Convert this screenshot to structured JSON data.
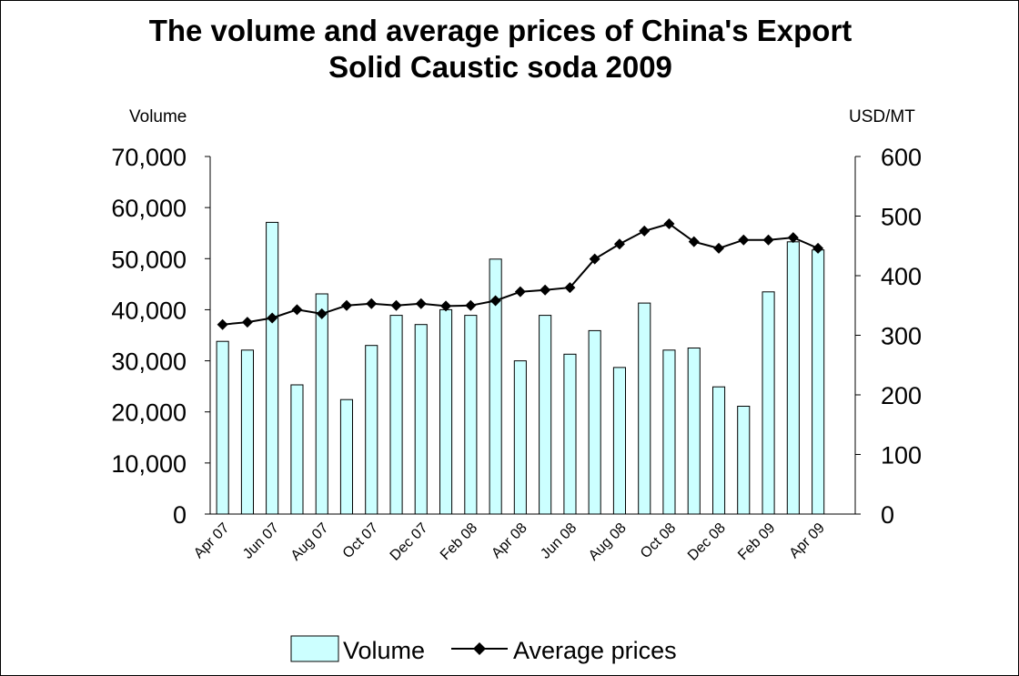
{
  "chart_data": {
    "type": "bar",
    "title_line1": "The volume and average prices of China's Export",
    "title_line2": "Solid Caustic soda 2009",
    "left_axis_label": "Volume",
    "right_axis_label": "USD/MT",
    "y_left_range": [
      0,
      70000
    ],
    "y_right_range": [
      0,
      600
    ],
    "y_left_ticks": [
      "0",
      "10,000",
      "20,000",
      "30,000",
      "40,000",
      "50,000",
      "60,000",
      "70,000"
    ],
    "y_right_ticks": [
      "0",
      "100",
      "200",
      "300",
      "400",
      "500",
      "600"
    ],
    "x_tick_labels": [
      "Apr 07",
      "Jun 07",
      "Aug 07",
      "Oct 07",
      "Dec 07",
      "Feb 08",
      "Apr 08",
      "Jun 08",
      "Aug 08",
      "Oct 08",
      "Dec 08",
      "Feb 09",
      "Apr 09"
    ],
    "categories": [
      "Apr 07",
      "May 07",
      "Jun 07",
      "Jul 07",
      "Aug 07",
      "Sep 07",
      "Oct 07",
      "Nov 07",
      "Dec 07",
      "Jan 08",
      "Feb 08",
      "Mar 08",
      "Apr 08",
      "May 08",
      "Jun 08",
      "Jul 08",
      "Aug 08",
      "Sep 08",
      "Oct 08",
      "Nov 08",
      "Dec 08",
      "Jan 09",
      "Feb 09",
      "Mar 09",
      "Apr 09",
      "May 09"
    ],
    "series": [
      {
        "name": "Volume",
        "type": "bar",
        "axis": "left",
        "color": "#ccffff",
        "values": [
          33800,
          32100,
          57100,
          25300,
          43100,
          22400,
          33000,
          38900,
          37100,
          40000,
          38900,
          49900,
          30000,
          38900,
          31300,
          35900,
          28700,
          41300,
          32100,
          32500,
          24900,
          21100,
          43500,
          53300,
          51700,
          0
        ]
      },
      {
        "name": "Average prices",
        "type": "line",
        "axis": "right",
        "color": "#000000",
        "values": [
          318,
          322,
          329,
          343,
          336,
          350,
          353,
          350,
          353,
          349,
          350,
          358,
          373,
          376,
          380,
          428,
          453,
          475,
          487,
          457,
          446,
          460,
          460,
          464,
          446,
          null
        ]
      }
    ],
    "legend_position": "bottom",
    "grid": false
  }
}
